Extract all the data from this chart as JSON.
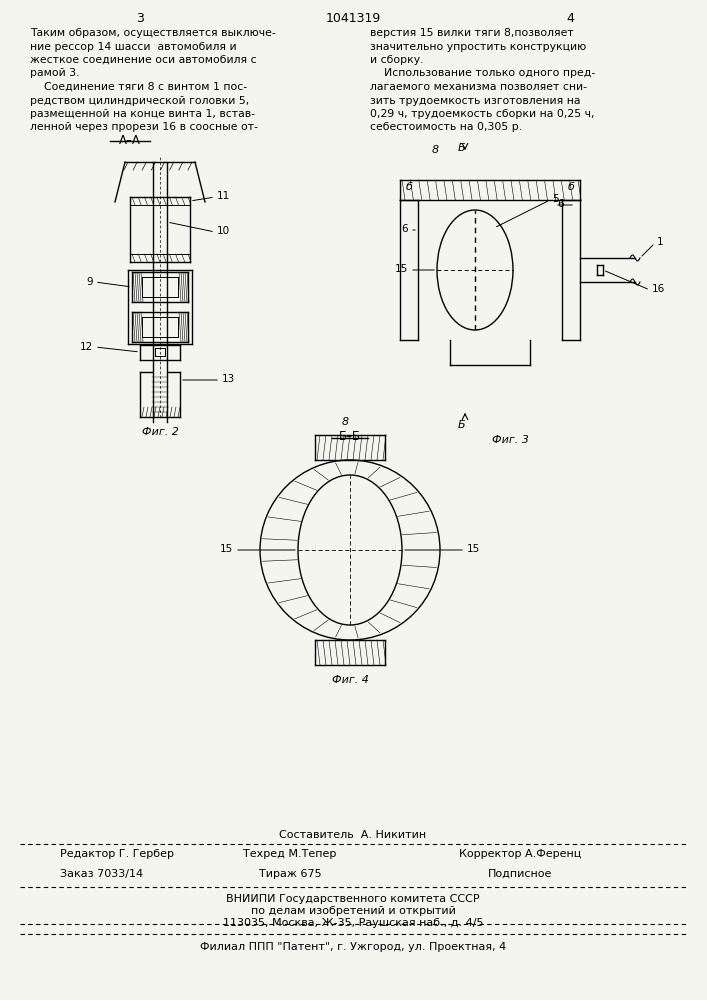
{
  "bg_color": "#f5f5f0",
  "page_number_left": "3",
  "page_number_center": "1041319",
  "page_number_right": "4",
  "text_col1": [
    "Таким образом, осуществляется выключе-",
    "ние рессор 14 шасси  автомобиля и",
    "жесткое соединение оси автомобиля с",
    "рамой 3.",
    "    Соединение тяги 8 с винтом 1 пос-",
    "редством цилиндрической головки 5,",
    "размещенной на конце винта 1, встав-",
    "ленной через прорези 16 в соосные от-"
  ],
  "text_col2": [
    "верстия 15 вилки тяги 8,позволяет",
    "значительно упростить конструкцию",
    "и сборку.",
    "    Использование только одного пред-",
    "лагаемого механизма позволяет сни-",
    "зить трудоемкость изготовления на",
    "0,29 ч, трудоемкость сборки на 0,25 ч,",
    "себестоимость на 0,305 р."
  ],
  "fig2_caption": "Фиг. 2",
  "fig3_caption": "Фиг. 3",
  "fig4_caption": "Фиг. 4",
  "footer_line1": "Составитель  А. Никитин",
  "footer_line2_left": "Редактор Г. Гербер",
  "footer_line2_mid": "Техред М.Тепер",
  "footer_line2_right": "Корректор А.Ференц",
  "footer_line3_left": "Заказ 7033/14",
  "footer_line3_mid": "Тираж 675",
  "footer_line3_right": "Подписное",
  "footer_line4": "ВНИИПИ Государственного комитета СССР",
  "footer_line5": "по делам изобретений и открытий",
  "footer_line6": "113035, Москва, Ж-35, Раушская наб., д. 4/5",
  "footer_line7": "Филиал ППП \"Патент\", г. Ужгород, ул. Проектная, 4"
}
